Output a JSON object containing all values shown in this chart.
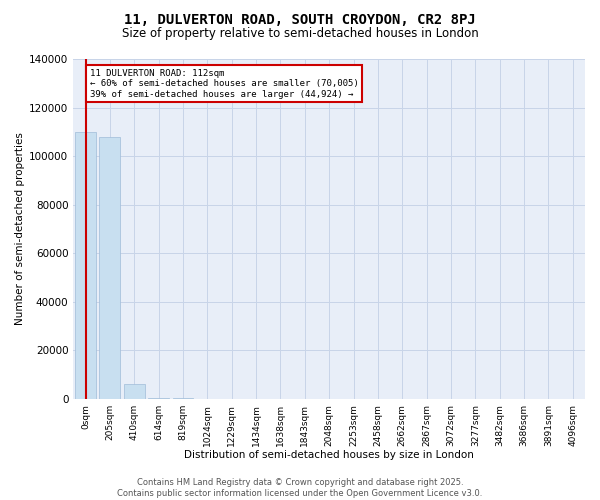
{
  "title": "11, DULVERTON ROAD, SOUTH CROYDON, CR2 8PJ",
  "subtitle": "Size of property relative to semi-detached houses in London",
  "xlabel": "Distribution of semi-detached houses by size in London",
  "ylabel": "Number of semi-detached properties",
  "bin_labels": [
    "0sqm",
    "205sqm",
    "410sqm",
    "614sqm",
    "819sqm",
    "1024sqm",
    "1229sqm",
    "1434sqm",
    "1638sqm",
    "1843sqm",
    "2048sqm",
    "2253sqm",
    "2458sqm",
    "2662sqm",
    "2867sqm",
    "3072sqm",
    "3277sqm",
    "3482sqm",
    "3686sqm",
    "3891sqm",
    "4096sqm"
  ],
  "bin_values": [
    110000,
    108000,
    6000,
    400,
    150,
    80,
    40,
    20,
    12,
    8,
    6,
    4,
    3,
    2,
    2,
    1,
    1,
    1,
    1,
    1,
    1
  ],
  "bar_color": "#c8dff0",
  "bar_edgecolor": "#a0bcd8",
  "property_line_color": "#cc0000",
  "annotation_text": "11 DULVERTON ROAD: 112sqm\n← 60% of semi-detached houses are smaller (70,005)\n39% of semi-detached houses are larger (44,924) →",
  "annotation_box_color": "#cc0000",
  "ylim": [
    0,
    140000
  ],
  "yticks": [
    0,
    20000,
    40000,
    60000,
    80000,
    100000,
    120000,
    140000
  ],
  "grid_color": "#c8d4e8",
  "background_color": "#e8eef8",
  "footnote": "Contains HM Land Registry data © Crown copyright and database right 2025.\nContains public sector information licensed under the Open Government Licence v3.0."
}
